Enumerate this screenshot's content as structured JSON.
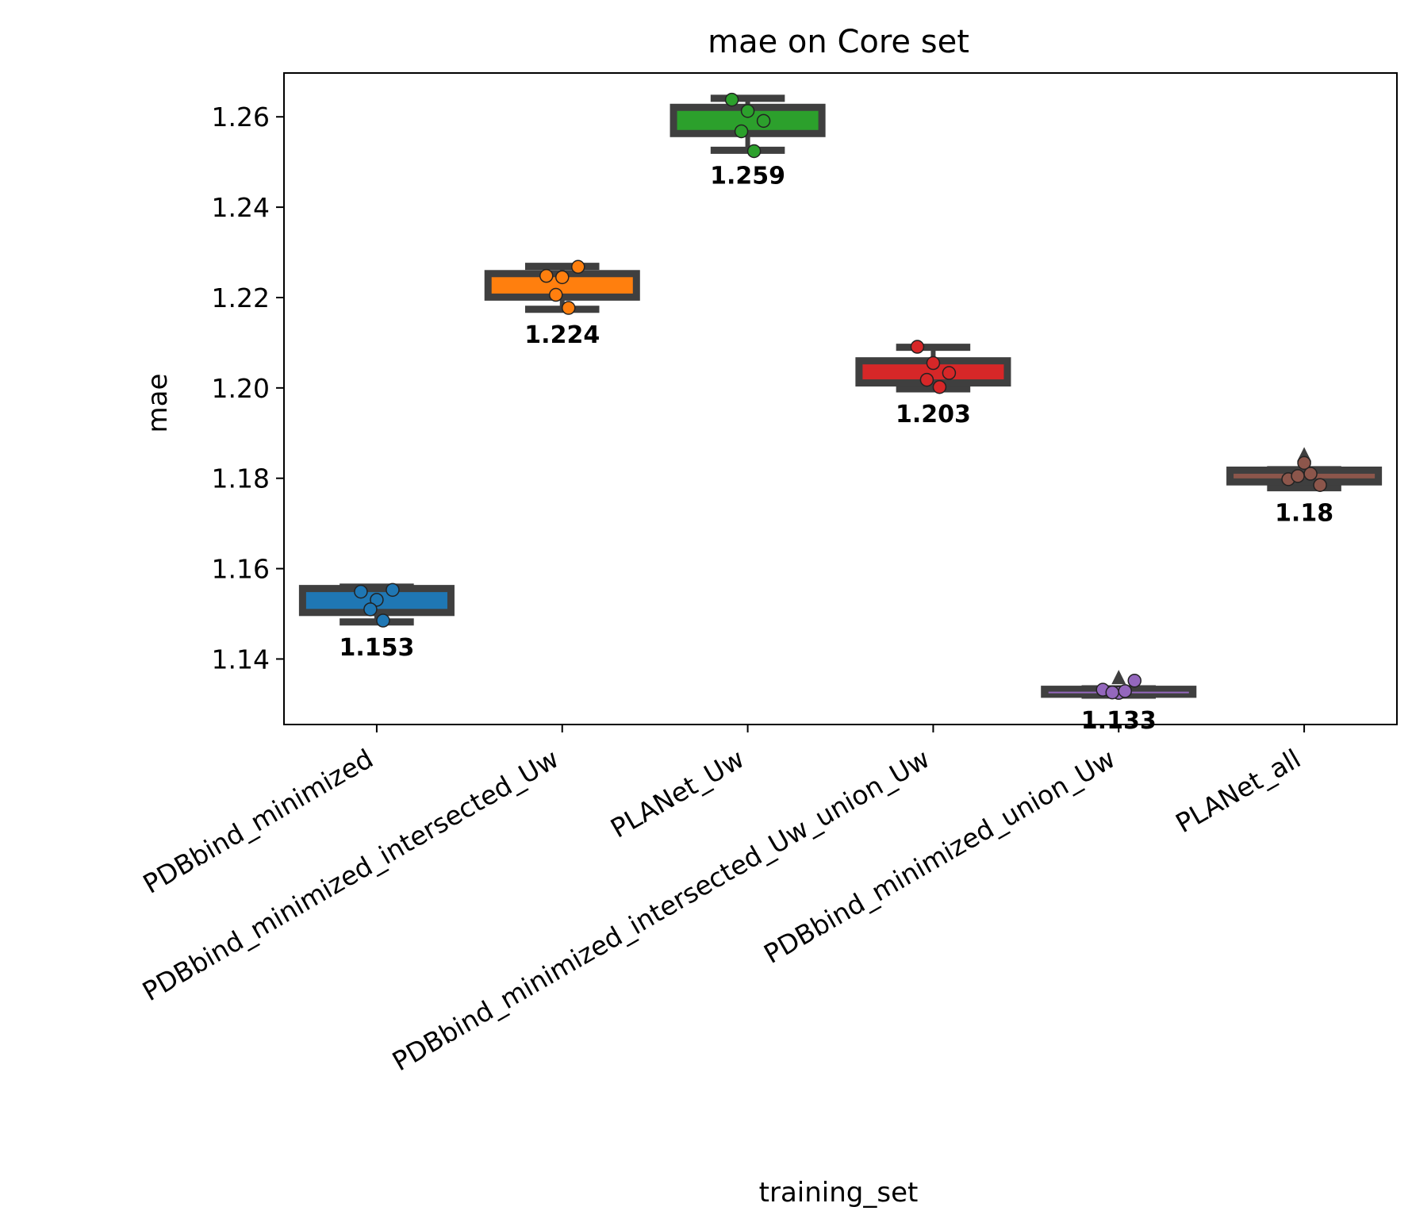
{
  "chart_data": {
    "type": "box",
    "title": "mae on Core set",
    "xlabel": "training_set",
    "ylabel": "mae",
    "ylim": [
      1.1255,
      1.2697
    ],
    "yticks": [
      "1.14",
      "1.16",
      "1.18",
      "1.20",
      "1.22",
      "1.24",
      "1.26"
    ],
    "grid": false,
    "legend": "none",
    "categories": [
      "PDBbind_minimized",
      "PDBbind_minimized_intersected_Uw",
      "PLANet_Uw",
      "PDBbind_minimized_intersected_Uw_union_Uw",
      "PDBbind_minimized_union_Uw",
      "PLANet_all"
    ],
    "boxes": [
      {
        "category": "PDBbind_minimized",
        "color": "#1f77b4",
        "whisker_low": 1.1482,
        "q1": 1.1503,
        "median": 1.1522,
        "mean": 1.153,
        "q3": 1.1556,
        "whisker_high": 1.1559,
        "points": [
          1.1549,
          1.1531,
          1.1553,
          1.151,
          1.1485
        ],
        "outliers": [],
        "mean_label": "1.153"
      },
      {
        "category": "PDBbind_minimized_intersected_Uw",
        "color": "#ff7f0e",
        "whisker_low": 1.2174,
        "q1": 1.2201,
        "median": 1.2228,
        "mean": 1.224,
        "q3": 1.2253,
        "whisker_high": 1.2269,
        "points": [
          1.2248,
          1.2245,
          1.2268,
          1.2206,
          1.2177
        ],
        "outliers": [],
        "mean_label": "1.224"
      },
      {
        "category": "PLANet_Uw",
        "color": "#2ca02c",
        "whisker_low": 1.2526,
        "q1": 1.2563,
        "median": 1.2601,
        "mean": 1.259,
        "q3": 1.2621,
        "whisker_high": 1.2641,
        "points": [
          1.2638,
          1.2613,
          1.2591,
          1.2568,
          1.2524
        ],
        "outliers": [],
        "mean_label": "1.259"
      },
      {
        "category": "PDBbind_minimized_intersected_Uw_union_Uw",
        "color": "#d62728",
        "whisker_low": 1.1998,
        "q1": 1.2011,
        "median": 1.2044,
        "mean": 1.203,
        "q3": 1.206,
        "whisker_high": 1.209,
        "points": [
          1.2091,
          1.2055,
          1.2033,
          1.2018,
          1.2002
        ],
        "outliers": [],
        "mean_label": "1.203"
      },
      {
        "category": "PDBbind_minimized_union_Uw",
        "color": "#9467bd",
        "whisker_low": 1.132,
        "q1": 1.1322,
        "median": 1.1326,
        "mean": 1.133,
        "q3": 1.1333,
        "whisker_high": 1.1334,
        "points": [
          1.1332,
          1.1325,
          1.1352,
          1.1326,
          1.1329
        ],
        "outliers": [
          1.1355
        ],
        "mean_label": "1.133"
      },
      {
        "category": "PLANet_all",
        "color": "#8c564b",
        "whisker_low": 1.1779,
        "q1": 1.1792,
        "median": 1.1802,
        "mean": 1.18,
        "q3": 1.1818,
        "whisker_high": 1.1819,
        "points": [
          1.1798,
          1.1834,
          1.1785,
          1.1805,
          1.181
        ],
        "outliers": [
          1.1848
        ],
        "mean_label": "1.18"
      }
    ]
  }
}
